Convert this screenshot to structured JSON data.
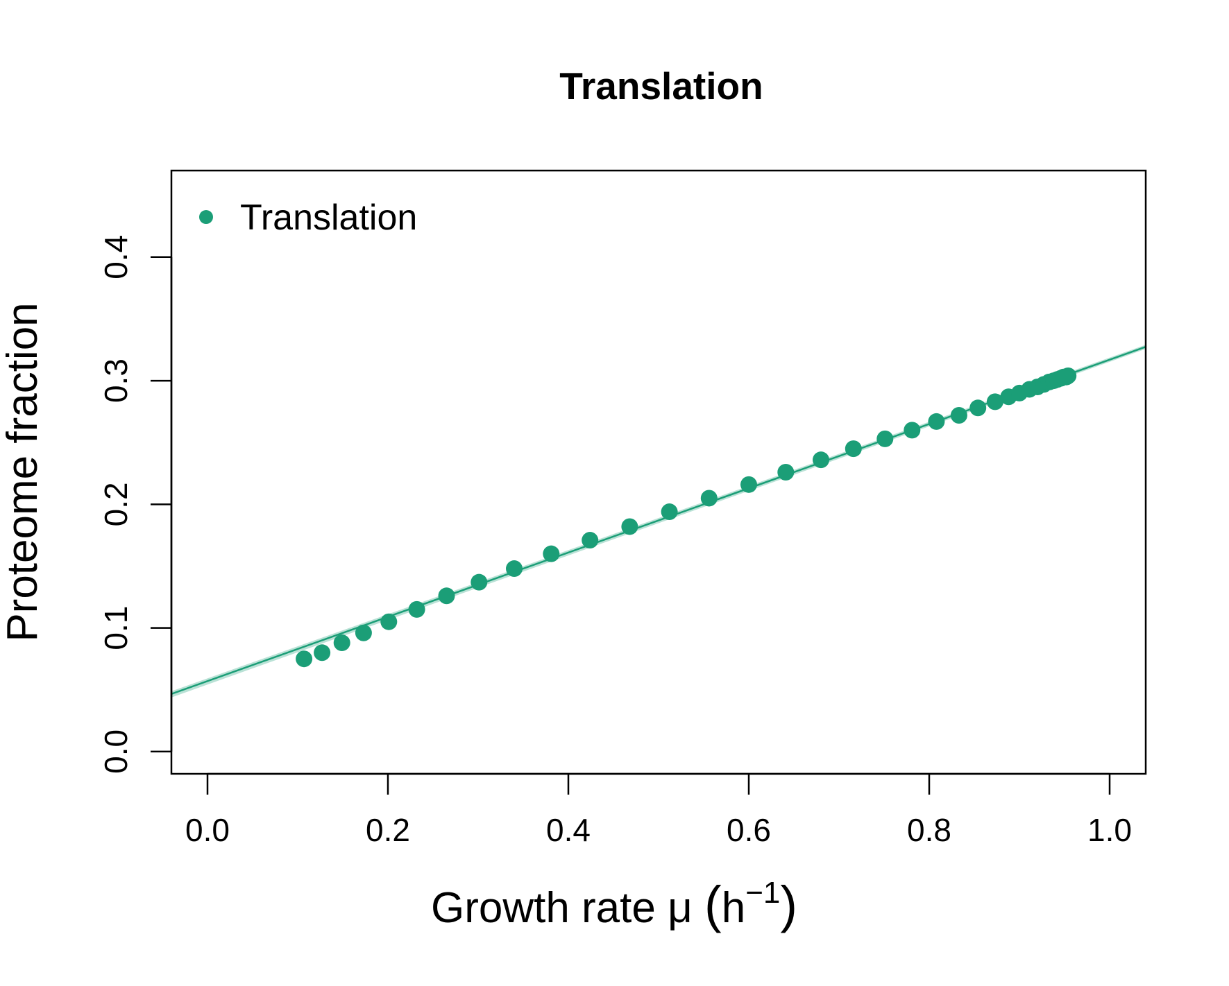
{
  "chart_data": {
    "type": "scatter",
    "title": "Translation",
    "xlabel": {
      "main": "Growth rate μ ",
      "unit_base": "h",
      "unit_exponent": "−1"
    },
    "ylabel": "Proteome fraction",
    "xlim": [
      -0.04,
      1.04
    ],
    "ylim": [
      -0.018,
      0.47
    ],
    "x_ticks": [
      0.0,
      0.2,
      0.4,
      0.6,
      0.8,
      1.0
    ],
    "x_tick_labels": [
      "0.0",
      "0.2",
      "0.4",
      "0.6",
      "0.8",
      "1.0"
    ],
    "y_ticks": [
      0.0,
      0.1,
      0.2,
      0.3,
      0.4
    ],
    "y_tick_labels": [
      "0.0",
      "0.1",
      "0.2",
      "0.3",
      "0.4"
    ],
    "grid": false,
    "legend": {
      "position": "top-left",
      "entries": [
        "Translation"
      ]
    },
    "color": "#1b9e77",
    "series": [
      {
        "name": "Translation",
        "x": [
          0.107,
          0.127,
          0.149,
          0.173,
          0.201,
          0.232,
          0.265,
          0.301,
          0.34,
          0.381,
          0.424,
          0.468,
          0.512,
          0.556,
          0.6,
          0.641,
          0.68,
          0.716,
          0.751,
          0.781,
          0.808,
          0.833,
          0.854,
          0.873,
          0.888,
          0.9,
          0.911,
          0.92,
          0.927,
          0.933,
          0.938,
          0.942,
          0.946,
          0.949,
          0.952,
          0.954
        ],
        "y": [
          0.075,
          0.08,
          0.088,
          0.096,
          0.105,
          0.115,
          0.126,
          0.137,
          0.148,
          0.16,
          0.171,
          0.182,
          0.194,
          0.205,
          0.216,
          0.226,
          0.236,
          0.245,
          0.253,
          0.26,
          0.267,
          0.272,
          0.278,
          0.283,
          0.287,
          0.29,
          0.293,
          0.295,
          0.297,
          0.299,
          0.3,
          0.301,
          0.302,
          0.303,
          0.303,
          0.304
        ]
      }
    ],
    "fit_line": {
      "intercept": 0.057,
      "slope": 0.26
    }
  }
}
